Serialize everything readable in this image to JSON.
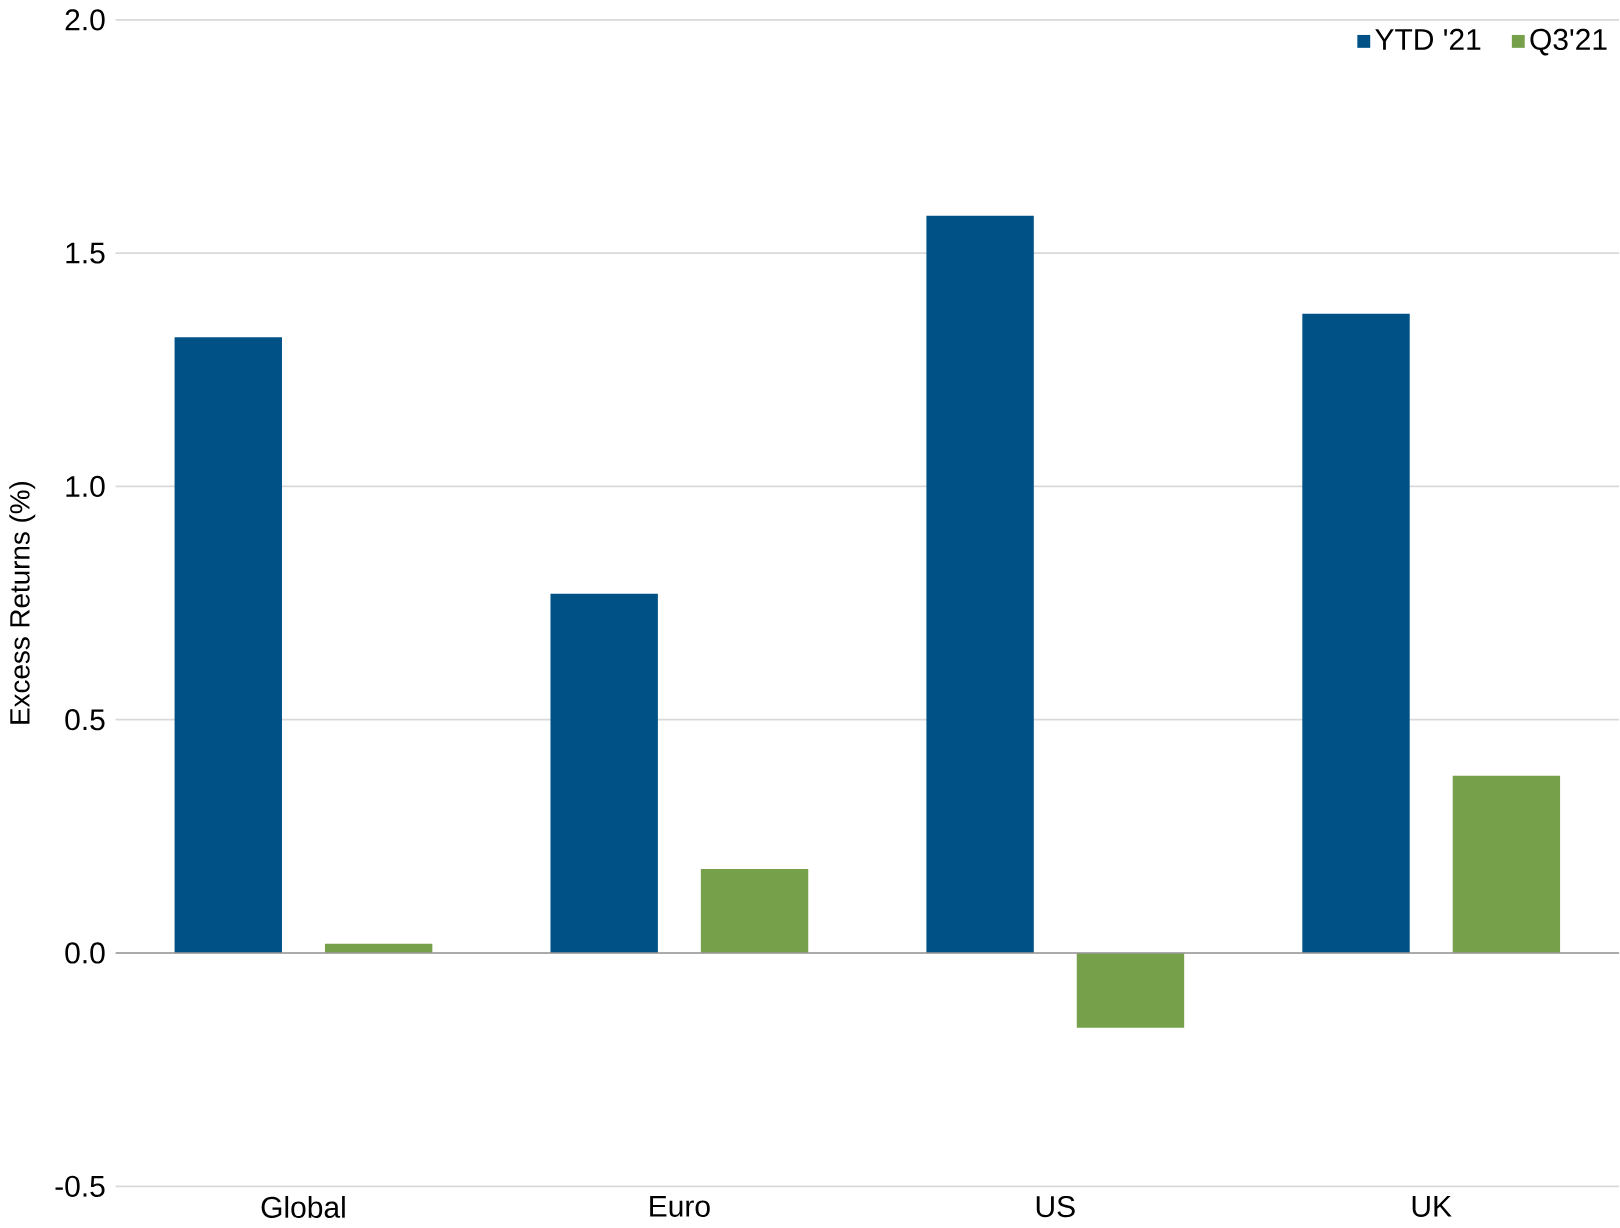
{
  "chart_data": {
    "type": "bar",
    "ylabel": "Excess Returns (%)",
    "categories": [
      "Global",
      "Euro",
      "US",
      "UK"
    ],
    "series": [
      {
        "name": "YTD '21",
        "color": "#005286",
        "values": [
          1.32,
          0.77,
          1.58,
          1.37
        ]
      },
      {
        "name": "Q3'21",
        "color": "#77a04a",
        "values": [
          0.02,
          0.18,
          -0.16,
          0.38
        ]
      }
    ],
    "ylim": [
      -0.5,
      2.0
    ],
    "yticks": [
      {
        "value": -0.5,
        "label": "-0.5"
      },
      {
        "value": 0,
        "label": "0.0"
      },
      {
        "value": 0.5,
        "label": "0.5"
      },
      {
        "value": 1,
        "label": "1.0"
      },
      {
        "value": 1.5,
        "label": "1.5"
      },
      {
        "value": 2,
        "label": "2.0"
      }
    ],
    "grid": "y",
    "legend": "top right"
  }
}
